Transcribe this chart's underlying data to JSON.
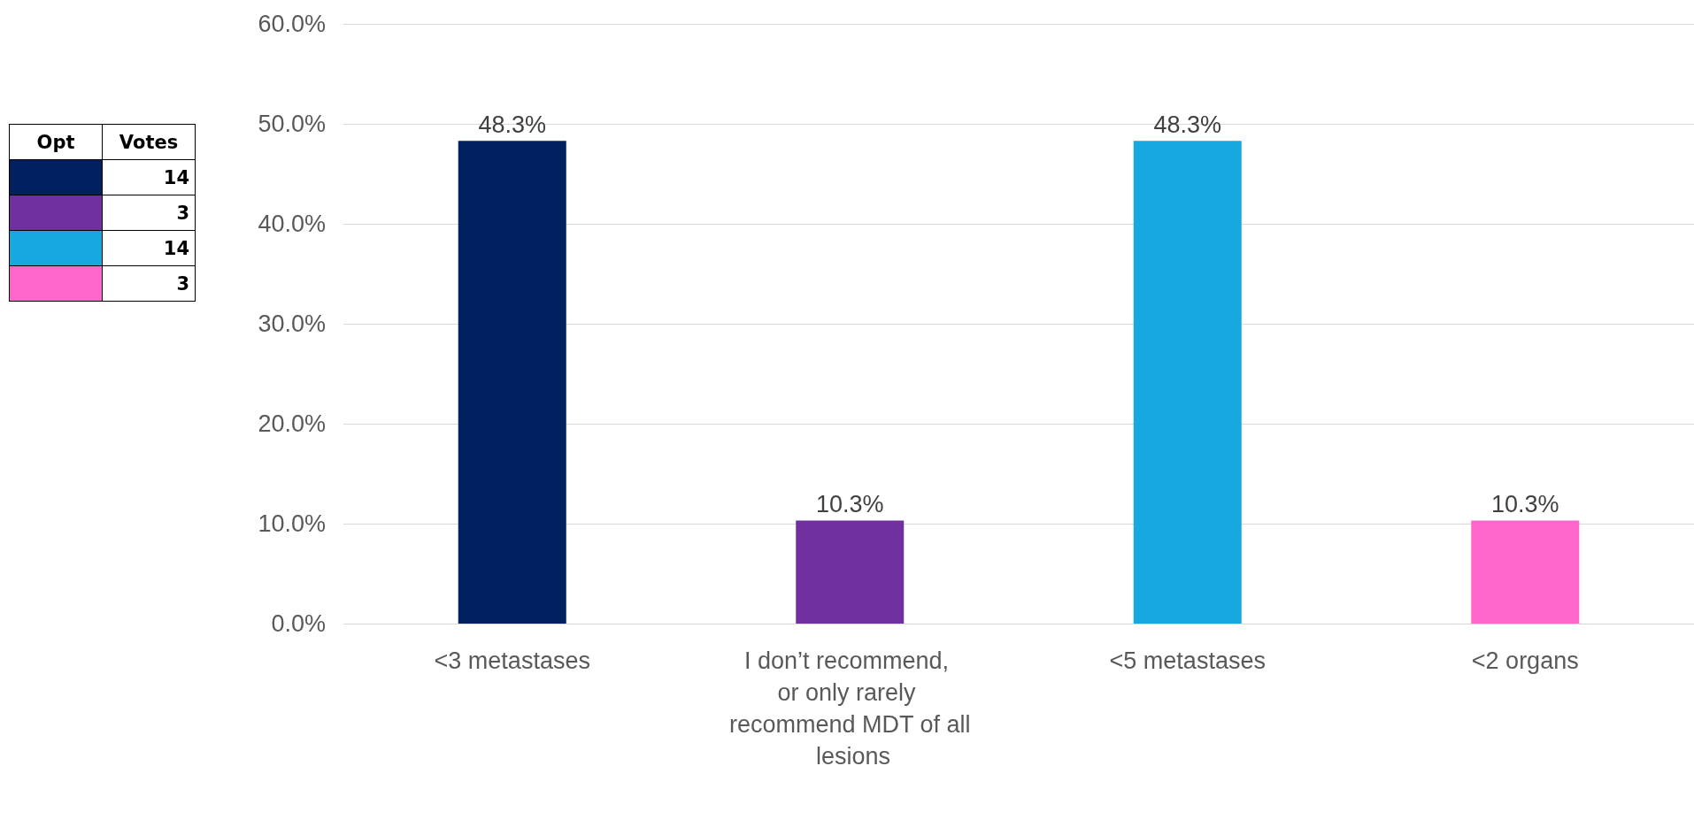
{
  "chart_data": {
    "type": "bar",
    "categories": [
      "<3 metastases",
      "I don’t recommend, or only rarely recommend MDT of all lesions",
      "<5 metastases",
      "<2 organs"
    ],
    "values": [
      48.3,
      10.3,
      48.3,
      10.3
    ],
    "colors": [
      "#002060",
      "#7030a0",
      "#17a8e0",
      "#ff66cc"
    ],
    "value_labels": [
      "48.3%",
      "10.3%",
      "48.3%",
      "10.3%"
    ],
    "ylim": [
      0,
      60
    ],
    "yticks": [
      {
        "value": 0,
        "label": "0.0%"
      },
      {
        "value": 10,
        "label": "10.0%"
      },
      {
        "value": 20,
        "label": "20.0%"
      },
      {
        "value": 30,
        "label": "30.0%"
      },
      {
        "value": 40,
        "label": "40.0%"
      },
      {
        "value": 50,
        "label": "50.0%"
      },
      {
        "value": 60,
        "label": "60.0%"
      }
    ],
    "grid": "y",
    "annotations": [
      "Opt",
      "Votes",
      "14",
      "3",
      "14",
      "3"
    ]
  }
}
